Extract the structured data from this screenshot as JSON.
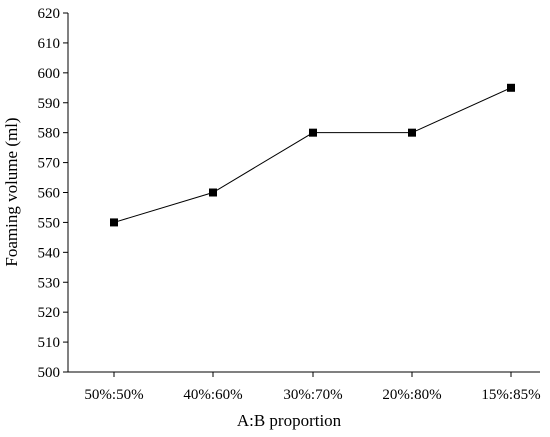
{
  "chart_data": {
    "type": "line",
    "categories": [
      "50%:50%",
      "40%:60%",
      "30%:70%",
      "20%:80%",
      "15%:85%"
    ],
    "series": [
      {
        "values": [
          550,
          560,
          580,
          580,
          595
        ]
      }
    ],
    "xlabel": "A:B proportion",
    "ylabel": "Foaming volume (ml)",
    "ylim": [
      500,
      620
    ],
    "yticks": [
      500,
      510,
      520,
      530,
      540,
      550,
      560,
      570,
      580,
      590,
      600,
      610,
      620
    ],
    "grid": false,
    "marker": "square",
    "colors": {
      "line": "#000000",
      "marker": "#000000",
      "axis": "#000000"
    }
  }
}
